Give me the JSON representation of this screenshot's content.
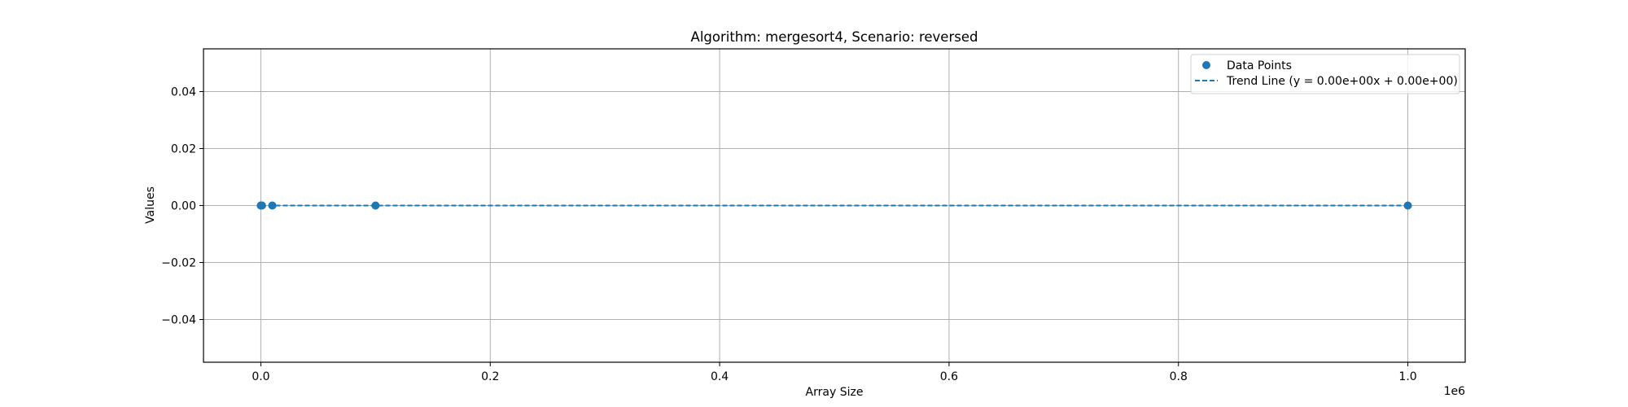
{
  "chart_data": {
    "type": "scatter",
    "title": "Algorithm: mergesort4, Scenario: reversed",
    "xlabel": "Array Size",
    "ylabel": "Values",
    "x_offset_label": "1e6",
    "xlim": [
      -50000,
      1050000
    ],
    "ylim": [
      -0.055,
      0.055
    ],
    "x_ticks": [
      0,
      0.2,
      0.4,
      0.6,
      0.8,
      1.0
    ],
    "x_tick_labels": [
      "0.0",
      "0.2",
      "0.4",
      "0.6",
      "0.8",
      "1.0"
    ],
    "y_ticks": [
      -0.04,
      -0.02,
      0.0,
      0.02,
      0.04
    ],
    "y_tick_labels": [
      "−0.04",
      "−0.02",
      "0.00",
      "0.02",
      "0.04"
    ],
    "grid": true,
    "legend_position": "top-right",
    "color": "#1f77b4",
    "series": [
      {
        "name": "Data Points",
        "kind": "scatter",
        "x": [
          10,
          100,
          1000,
          10000,
          100000,
          1000000
        ],
        "y": [
          0,
          0,
          0,
          0,
          0,
          0
        ]
      },
      {
        "name": "Trend Line (y = 0.00e+00x + 0.00e+00)",
        "kind": "line",
        "style": "dashed",
        "x": [
          10,
          1000000
        ],
        "y": [
          0,
          0
        ]
      }
    ]
  }
}
